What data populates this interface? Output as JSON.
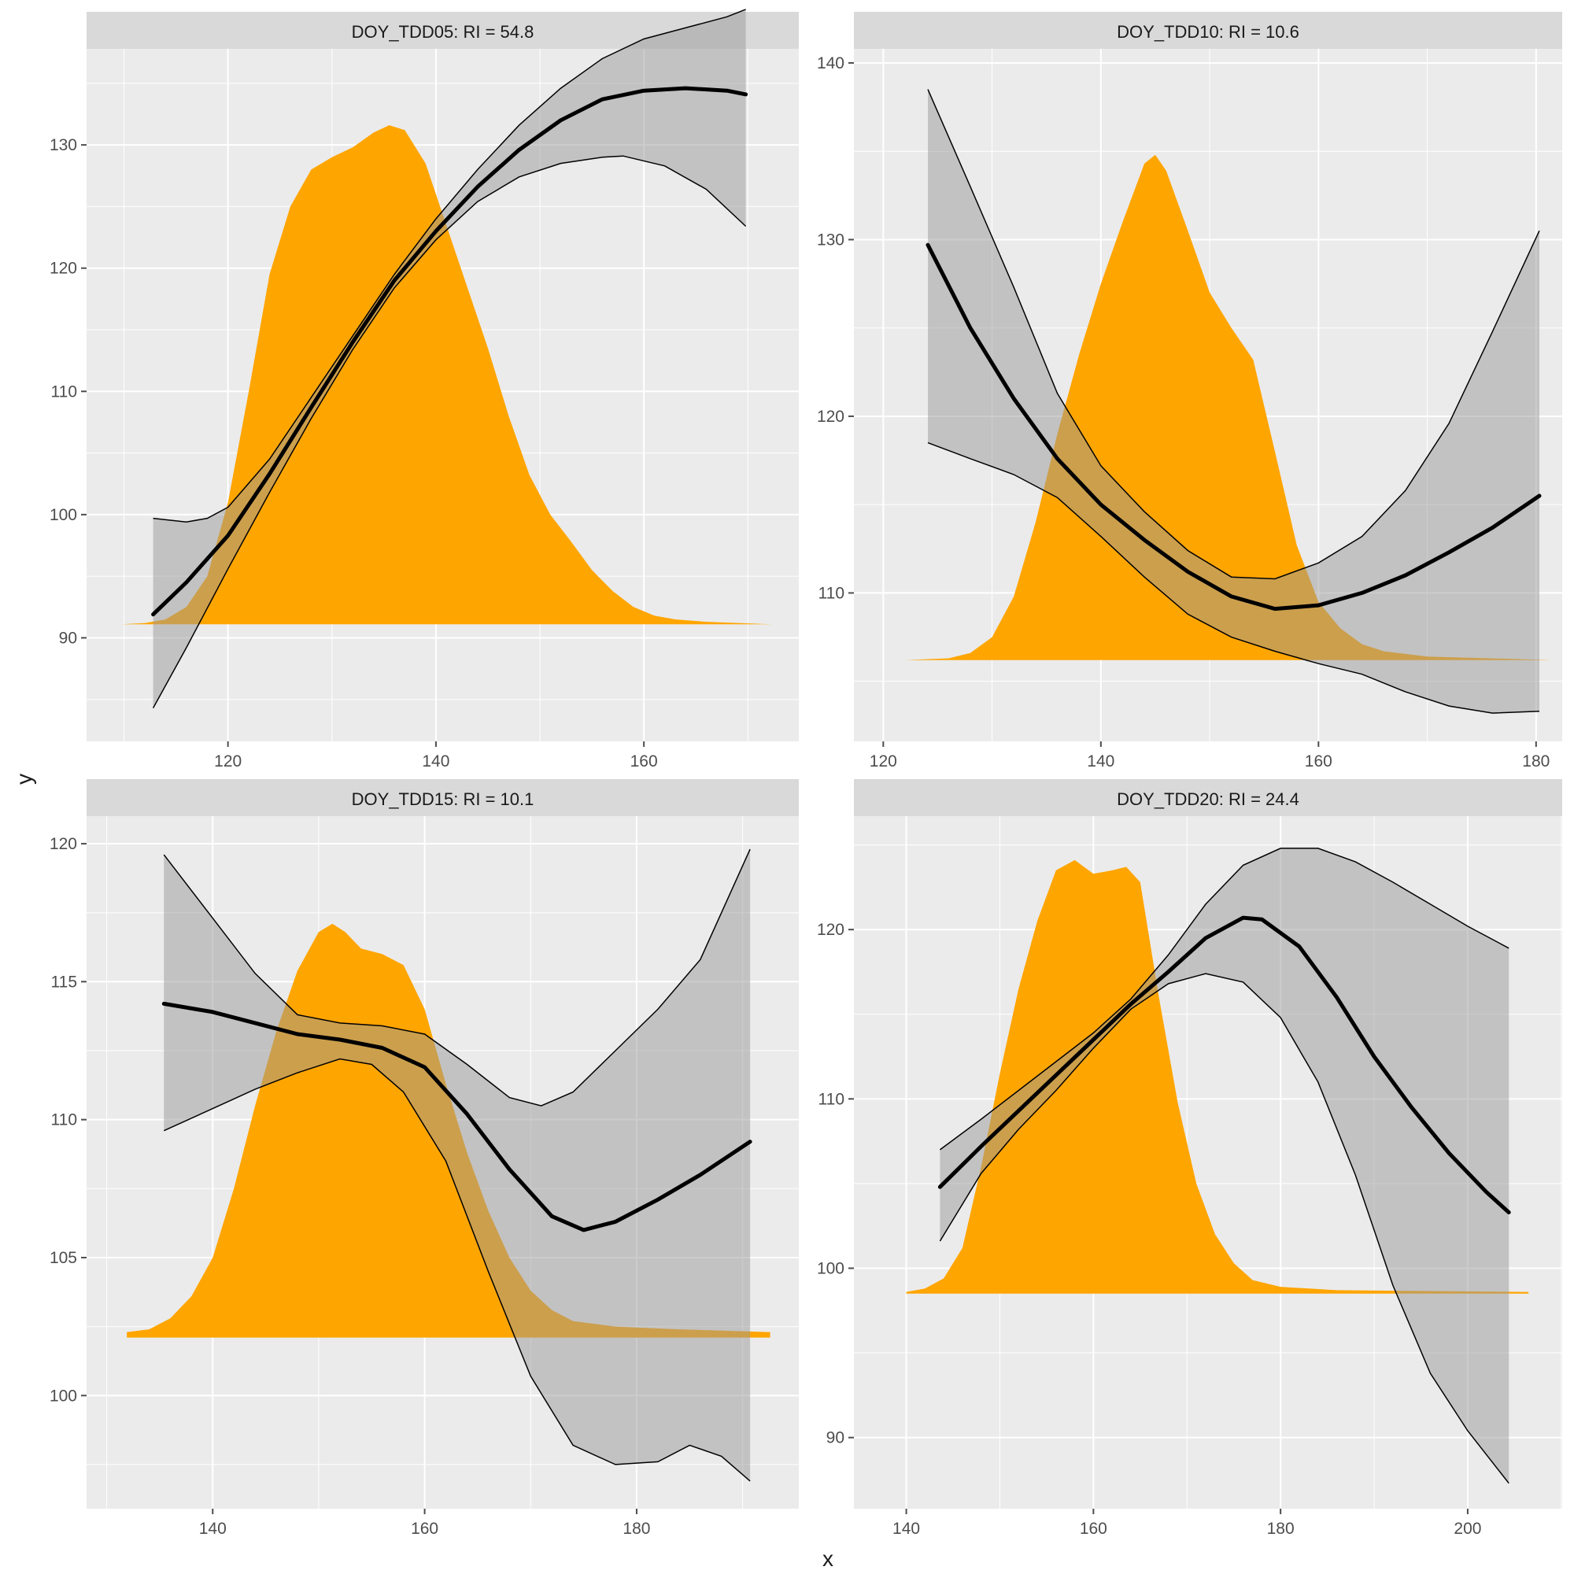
{
  "axis_labels": {
    "x": "x",
    "y": "y"
  },
  "colors": {
    "panel_bg": "#ebebeb",
    "strip_bg": "#d9d9d9",
    "grid": "#ffffff",
    "density_fill": "#ffa500",
    "ribbon_fill": "#999999",
    "line": "#000000",
    "text": "#1a1a1a",
    "tick": "#4d4d4d"
  },
  "chart_data": [
    {
      "type": "line",
      "title": "DOY_TDD05: RI = 54.8",
      "xlim": [
        106.4,
        174.9
      ],
      "ylim": [
        81.6,
        137.8
      ],
      "x_ticks": [
        120,
        140,
        160
      ],
      "y_ticks": [
        90,
        100,
        110,
        120,
        130
      ],
      "density_baseline": 91.1,
      "density": [
        [
          109.7,
          91.1
        ],
        [
          112,
          91.2
        ],
        [
          114,
          91.5
        ],
        [
          116,
          92.5
        ],
        [
          118,
          95
        ],
        [
          120,
          101
        ],
        [
          122,
          110
        ],
        [
          124,
          119.5
        ],
        [
          126,
          125
        ],
        [
          128,
          128
        ],
        [
          130,
          129
        ],
        [
          132,
          129.8
        ],
        [
          134,
          131
        ],
        [
          135.5,
          131.6
        ],
        [
          137,
          131.2
        ],
        [
          139,
          128.5
        ],
        [
          141,
          123.5
        ],
        [
          143,
          118.5
        ],
        [
          145,
          113.5
        ],
        [
          147,
          108
        ],
        [
          149,
          103.2
        ],
        [
          151,
          100
        ],
        [
          153,
          97.8
        ],
        [
          155,
          95.5
        ],
        [
          157,
          93.8
        ],
        [
          159,
          92.5
        ],
        [
          161,
          91.8
        ],
        [
          163,
          91.5
        ],
        [
          166,
          91.3
        ],
        [
          172.3,
          91.1
        ]
      ],
      "fit": [
        [
          112.8,
          91.9
        ],
        [
          116,
          94.5
        ],
        [
          120,
          98.3
        ],
        [
          124,
          103.3
        ],
        [
          128,
          108.7
        ],
        [
          132,
          114
        ],
        [
          136,
          119
        ],
        [
          140,
          123
        ],
        [
          144,
          126.6
        ],
        [
          148,
          129.6
        ],
        [
          152,
          132
        ],
        [
          156,
          133.7
        ],
        [
          160,
          134.4
        ],
        [
          164,
          134.6
        ],
        [
          168,
          134.4
        ],
        [
          169.8,
          134.1
        ]
      ],
      "upper": [
        [
          112.8,
          99.7
        ],
        [
          116,
          99.4
        ],
        [
          118,
          99.7
        ],
        [
          120,
          100.6
        ],
        [
          124,
          104.5
        ],
        [
          128,
          109.5
        ],
        [
          132,
          114.5
        ],
        [
          136,
          119.5
        ],
        [
          140,
          124
        ],
        [
          144,
          128
        ],
        [
          148,
          131.6
        ],
        [
          152,
          134.6
        ],
        [
          156,
          137
        ],
        [
          160,
          138.6
        ],
        [
          164,
          139.5
        ],
        [
          168,
          140.4
        ],
        [
          169.8,
          141
        ]
      ],
      "lower": [
        [
          112.8,
          84.3
        ],
        [
          116,
          89.2
        ],
        [
          120,
          95.6
        ],
        [
          124,
          101.8
        ],
        [
          128,
          107.8
        ],
        [
          132,
          113.4
        ],
        [
          136,
          118.4
        ],
        [
          140,
          122.3
        ],
        [
          144,
          125.4
        ],
        [
          148,
          127.4
        ],
        [
          152,
          128.5
        ],
        [
          156,
          129
        ],
        [
          158,
          129.1
        ],
        [
          162,
          128.3
        ],
        [
          166,
          126.4
        ],
        [
          169.8,
          123.4
        ]
      ]
    },
    {
      "type": "line",
      "title": "DOY_TDD10: RI = 10.6",
      "xlim": [
        117.3,
        182.4
      ],
      "ylim": [
        101.6,
        140.8
      ],
      "x_ticks": [
        120,
        140,
        160,
        180
      ],
      "y_ticks": [
        110,
        120,
        130,
        140
      ],
      "density_baseline": 106.2,
      "density": [
        [
          122,
          106.2
        ],
        [
          126,
          106.3
        ],
        [
          128,
          106.6
        ],
        [
          130,
          107.5
        ],
        [
          132,
          109.8
        ],
        [
          134,
          114
        ],
        [
          136,
          119
        ],
        [
          138,
          123.5
        ],
        [
          140,
          127.5
        ],
        [
          142,
          131
        ],
        [
          144,
          134.3
        ],
        [
          145,
          134.8
        ],
        [
          146,
          133.9
        ],
        [
          148,
          130.5
        ],
        [
          150,
          127
        ],
        [
          152,
          125
        ],
        [
          154,
          123.2
        ],
        [
          156,
          118
        ],
        [
          158,
          112.7
        ],
        [
          160,
          109.5
        ],
        [
          162,
          108
        ],
        [
          164,
          107.1
        ],
        [
          166,
          106.7
        ],
        [
          170,
          106.4
        ],
        [
          181.4,
          106.2
        ]
      ],
      "fit": [
        [
          124.1,
          129.7
        ],
        [
          128,
          125
        ],
        [
          132,
          121
        ],
        [
          136,
          117.6
        ],
        [
          140,
          115
        ],
        [
          144,
          113
        ],
        [
          148,
          111.2
        ],
        [
          152,
          109.8
        ],
        [
          156,
          109.1
        ],
        [
          160,
          109.3
        ],
        [
          164,
          110
        ],
        [
          168,
          111
        ],
        [
          172,
          112.3
        ],
        [
          176,
          113.7
        ],
        [
          180.3,
          115.5
        ]
      ],
      "upper": [
        [
          124.1,
          138.5
        ],
        [
          128,
          133
        ],
        [
          132,
          127.3
        ],
        [
          136,
          121.3
        ],
        [
          140,
          117.2
        ],
        [
          144,
          114.6
        ],
        [
          148,
          112.4
        ],
        [
          152,
          110.9
        ],
        [
          156,
          110.8
        ],
        [
          160,
          111.7
        ],
        [
          164,
          113.2
        ],
        [
          168,
          115.8
        ],
        [
          172,
          119.6
        ],
        [
          176,
          124.8
        ],
        [
          180.3,
          130.5
        ]
      ],
      "lower": [
        [
          124.1,
          118.5
        ],
        [
          128,
          117.6
        ],
        [
          132,
          116.7
        ],
        [
          136,
          115.4
        ],
        [
          140,
          113.2
        ],
        [
          144,
          110.9
        ],
        [
          148,
          108.8
        ],
        [
          152,
          107.5
        ],
        [
          156,
          106.7
        ],
        [
          160,
          106
        ],
        [
          164,
          105.4
        ],
        [
          168,
          104.4
        ],
        [
          172,
          103.6
        ],
        [
          176,
          103.2
        ],
        [
          180.3,
          103.3
        ]
      ]
    },
    {
      "type": "line",
      "title": "DOY_TDD15: RI = 10.1",
      "xlim": [
        128.1,
        195.3
      ],
      "ylim": [
        95.9,
        121
      ],
      "x_ticks": [
        140,
        160,
        180
      ],
      "y_ticks": [
        100,
        105,
        110,
        115,
        120
      ],
      "density_baseline": 102.1,
      "density": [
        [
          131.9,
          102.3
        ],
        [
          134,
          102.4
        ],
        [
          136,
          102.8
        ],
        [
          138,
          103.6
        ],
        [
          140,
          105
        ],
        [
          142,
          107.5
        ],
        [
          144,
          110.5
        ],
        [
          146,
          113.2
        ],
        [
          148,
          115.4
        ],
        [
          150,
          116.8
        ],
        [
          151.3,
          117.1
        ],
        [
          152.5,
          116.8
        ],
        [
          154,
          116.2
        ],
        [
          156,
          116
        ],
        [
          158,
          115.6
        ],
        [
          160,
          114
        ],
        [
          162,
          111.3
        ],
        [
          164,
          108.8
        ],
        [
          166,
          106.7
        ],
        [
          168,
          105
        ],
        [
          170,
          103.8
        ],
        [
          172,
          103.1
        ],
        [
          174,
          102.7
        ],
        [
          178,
          102.5
        ],
        [
          184,
          102.4
        ],
        [
          192.6,
          102.3
        ]
      ],
      "fit": [
        [
          135.4,
          114.2
        ],
        [
          140,
          113.9
        ],
        [
          144,
          113.5
        ],
        [
          148,
          113.1
        ],
        [
          152,
          112.9
        ],
        [
          156,
          112.6
        ],
        [
          160,
          111.9
        ],
        [
          164,
          110.2
        ],
        [
          168,
          108.2
        ],
        [
          172,
          106.5
        ],
        [
          175,
          106
        ],
        [
          178,
          106.3
        ],
        [
          182,
          107.1
        ],
        [
          186,
          108
        ],
        [
          190.7,
          109.2
        ]
      ],
      "upper": [
        [
          135.4,
          119.6
        ],
        [
          140,
          117.3
        ],
        [
          144,
          115.3
        ],
        [
          148,
          113.8
        ],
        [
          152,
          113.5
        ],
        [
          156,
          113.4
        ],
        [
          160,
          113.1
        ],
        [
          164,
          112
        ],
        [
          168,
          110.8
        ],
        [
          171,
          110.5
        ],
        [
          174,
          111
        ],
        [
          178,
          112.5
        ],
        [
          182,
          114
        ],
        [
          186,
          115.8
        ],
        [
          190.7,
          119.8
        ]
      ],
      "lower": [
        [
          135.4,
          109.6
        ],
        [
          140,
          110.4
        ],
        [
          144,
          111.1
        ],
        [
          148,
          111.7
        ],
        [
          152,
          112.2
        ],
        [
          155,
          112
        ],
        [
          158,
          111
        ],
        [
          162,
          108.5
        ],
        [
          166,
          104.5
        ],
        [
          170,
          100.7
        ],
        [
          174,
          98.2
        ],
        [
          178,
          97.5
        ],
        [
          182,
          97.6
        ],
        [
          185,
          98.2
        ],
        [
          188,
          97.8
        ],
        [
          190.7,
          96.9
        ]
      ]
    },
    {
      "type": "line",
      "title": "DOY_TDD20: RI = 24.4",
      "xlim": [
        134.4,
        210.1
      ],
      "ylim": [
        85.8,
        126.7
      ],
      "x_ticks": [
        140,
        160,
        180,
        200
      ],
      "y_ticks": [
        90,
        100,
        110,
        120
      ],
      "density_baseline": 98.5,
      "density": [
        [
          140,
          98.6
        ],
        [
          142,
          98.8
        ],
        [
          144,
          99.4
        ],
        [
          146,
          101.2
        ],
        [
          148,
          106
        ],
        [
          150,
          111.5
        ],
        [
          152,
          116.5
        ],
        [
          154,
          120.5
        ],
        [
          156,
          123.5
        ],
        [
          158,
          124.1
        ],
        [
          160,
          123.3
        ],
        [
          162,
          123.5
        ],
        [
          163.5,
          123.7
        ],
        [
          165,
          122.8
        ],
        [
          167,
          116
        ],
        [
          169,
          109.8
        ],
        [
          171,
          105
        ],
        [
          173,
          102
        ],
        [
          175,
          100.3
        ],
        [
          177,
          99.3
        ],
        [
          180,
          98.9
        ],
        [
          186,
          98.7
        ],
        [
          206.5,
          98.6
        ]
      ],
      "fit": [
        [
          143.6,
          104.8
        ],
        [
          148,
          107.2
        ],
        [
          152,
          109.3
        ],
        [
          156,
          111.4
        ],
        [
          160,
          113.5
        ],
        [
          164,
          115.6
        ],
        [
          168,
          117.5
        ],
        [
          172,
          119.5
        ],
        [
          176,
          120.7
        ],
        [
          178,
          120.6
        ],
        [
          182,
          119
        ],
        [
          186,
          116
        ],
        [
          190,
          112.5
        ],
        [
          194,
          109.5
        ],
        [
          198,
          106.8
        ],
        [
          202,
          104.5
        ],
        [
          204.4,
          103.3
        ]
      ],
      "upper": [
        [
          143.6,
          107
        ],
        [
          148,
          108.8
        ],
        [
          152,
          110.5
        ],
        [
          156,
          112.2
        ],
        [
          160,
          113.9
        ],
        [
          164,
          115.9
        ],
        [
          168,
          118.5
        ],
        [
          172,
          121.5
        ],
        [
          176,
          123.8
        ],
        [
          180,
          124.8
        ],
        [
          184,
          124.8
        ],
        [
          188,
          124
        ],
        [
          192,
          122.8
        ],
        [
          196,
          121.5
        ],
        [
          200,
          120.2
        ],
        [
          204.4,
          118.9
        ]
      ],
      "lower": [
        [
          143.6,
          101.6
        ],
        [
          148,
          105.6
        ],
        [
          152,
          108.2
        ],
        [
          156,
          110.5
        ],
        [
          160,
          113
        ],
        [
          164,
          115.3
        ],
        [
          168,
          116.8
        ],
        [
          172,
          117.4
        ],
        [
          176,
          116.9
        ],
        [
          180,
          114.8
        ],
        [
          184,
          111
        ],
        [
          188,
          105.5
        ],
        [
          192,
          99
        ],
        [
          196,
          93.8
        ],
        [
          200,
          90.4
        ],
        [
          204.4,
          87.3
        ]
      ]
    }
  ]
}
